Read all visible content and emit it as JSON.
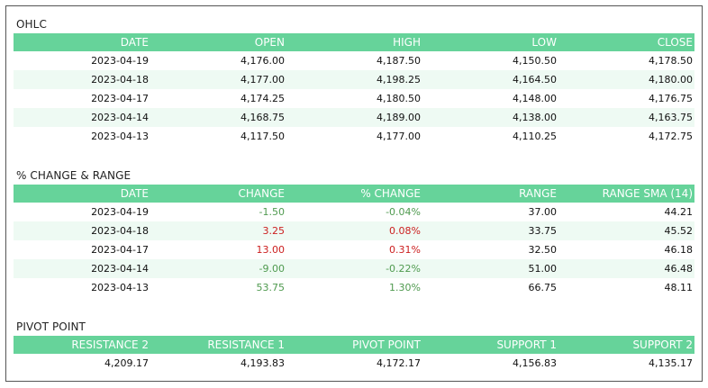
{
  "ohlc": {
    "title": "OHLC",
    "columns": [
      "DATE",
      "OPEN",
      "HIGH",
      "LOW",
      "CLOSE"
    ],
    "rows": [
      [
        "2023-04-19",
        "4,176.00",
        "4,187.50",
        "4,150.50",
        "4,178.50"
      ],
      [
        "2023-04-18",
        "4,177.00",
        "4,198.25",
        "4,164.50",
        "4,180.00"
      ],
      [
        "2023-04-17",
        "4,174.25",
        "4,180.50",
        "4,148.00",
        "4,176.75"
      ],
      [
        "2023-04-14",
        "4,168.75",
        "4,189.00",
        "4,138.00",
        "4,163.75"
      ],
      [
        "2023-04-13",
        "4,117.50",
        "4,177.00",
        "4,110.25",
        "4,172.75"
      ]
    ]
  },
  "change_range": {
    "title": "% CHANGE & RANGE",
    "columns": [
      "DATE",
      "CHANGE",
      "% CHANGE",
      "RANGE",
      "RANGE SMA (14)"
    ],
    "rows": [
      [
        "2023-04-19",
        "-1.50",
        "-0.04%",
        "37.00",
        "44.21"
      ],
      [
        "2023-04-18",
        "3.25",
        "0.08%",
        "33.75",
        "45.52"
      ],
      [
        "2023-04-17",
        "13.00",
        "0.31%",
        "32.50",
        "46.18"
      ],
      [
        "2023-04-14",
        "-9.00",
        "-0.22%",
        "51.00",
        "46.48"
      ],
      [
        "2023-04-13",
        "53.75",
        "1.30%",
        "66.75",
        "48.11"
      ]
    ],
    "colors": {
      "positive": "#cc1f1f",
      "negative": "#4f9a4f"
    }
  },
  "pivot": {
    "title": "PIVOT POINT",
    "columns": [
      "RESISTANCE 2",
      "RESISTANCE 1",
      "PIVOT POINT",
      "SUPPORT 1",
      "SUPPORT 2"
    ],
    "rows": [
      [
        "4,209.17",
        "4,193.83",
        "4,172.17",
        "4,156.83",
        "4,135.17"
      ]
    ]
  },
  "colors": {
    "header_bg": "#66d39a",
    "alt_row_bg": "#eefaf3"
  }
}
